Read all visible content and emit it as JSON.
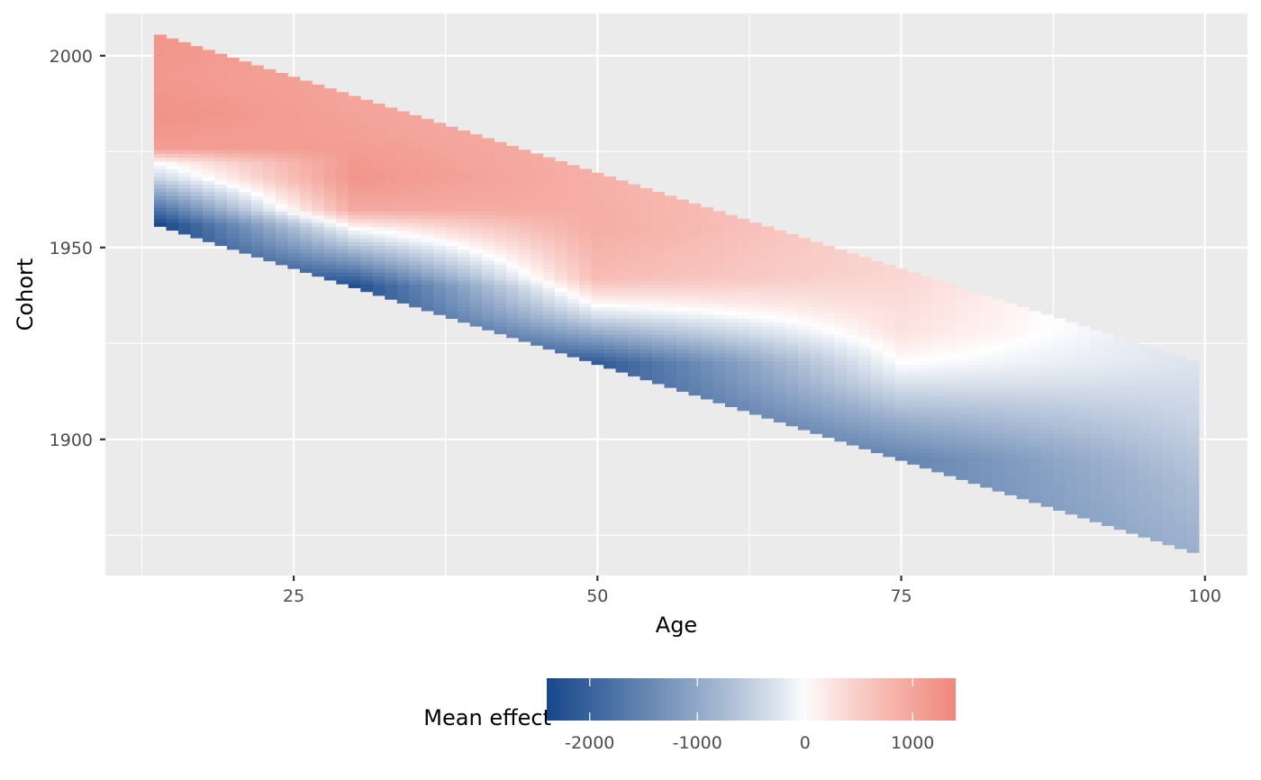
{
  "chart_data": {
    "type": "heatmap",
    "title": "",
    "xlabel": "Age",
    "ylabel": "Cohort",
    "x_ticks": [
      25,
      50,
      75,
      100
    ],
    "y_ticks": [
      1900,
      1950,
      2000
    ],
    "xlim": [
      9.5,
      103.5
    ],
    "ylim": [
      1864.5,
      2011
    ],
    "grid": true,
    "age_range": [
      14,
      99
    ],
    "period_range": [
      1970,
      2019
    ],
    "legend": {
      "title": "Mean effect",
      "position": "bottom",
      "ticks": [
        -2000,
        -1000,
        0,
        1000
      ],
      "tick_labels": [
        "-2000",
        "-1000",
        "0",
        "1000"
      ],
      "range": [
        -2400,
        1400
      ],
      "colors": {
        "low": "#17488b",
        "mid": "#ffffff",
        "high": "#f0877a"
      }
    },
    "effect_profile": [
      {
        "age": 14,
        "cohort_values": [
          [
            1956,
            -2400
          ],
          [
            1962,
            -1400
          ],
          [
            1968,
            -400
          ],
          [
            1972,
            0
          ],
          [
            1976,
            1100
          ],
          [
            1985,
            1250
          ],
          [
            1994,
            1150
          ],
          [
            2005,
            1200
          ]
        ]
      },
      {
        "age": 30,
        "cohort_values": [
          [
            1940,
            -2300
          ],
          [
            1946,
            -1300
          ],
          [
            1952,
            -400
          ],
          [
            1955,
            0
          ],
          [
            1960,
            950
          ],
          [
            1968,
            1200
          ],
          [
            1980,
            1050
          ],
          [
            1989,
            1000
          ]
        ]
      },
      {
        "age": 50,
        "cohort_values": [
          [
            1920,
            -2100
          ],
          [
            1926,
            -1200
          ],
          [
            1932,
            -350
          ],
          [
            1935,
            0
          ],
          [
            1942,
            700
          ],
          [
            1955,
            900
          ],
          [
            1969,
            850
          ]
        ]
      },
      {
        "age": 75,
        "cohort_values": [
          [
            1895,
            -1500
          ],
          [
            1905,
            -900
          ],
          [
            1915,
            -250
          ],
          [
            1920,
            0
          ],
          [
            1928,
            250
          ],
          [
            1944,
            400
          ]
        ]
      },
      {
        "age": 99,
        "cohort_values": [
          [
            1871,
            -900
          ],
          [
            1890,
            -700
          ],
          [
            1905,
            -450
          ],
          [
            1920,
            -250
          ]
        ]
      }
    ]
  }
}
